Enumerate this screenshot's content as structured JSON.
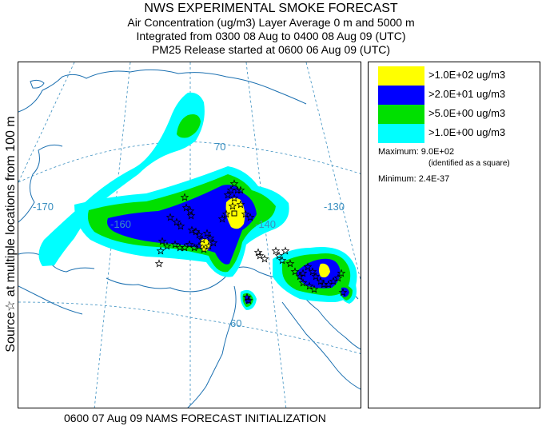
{
  "title": {
    "line1": "NWS EXPERIMENTAL SMOKE FORECAST",
    "line2": "Air Concentration (ug/m3) Layer Average    0 m and  5000 m",
    "line3": "Integrated from 0300 08 Aug to 0400 08 Aug 09 (UTC)",
    "line4": "PM25 Release started at 0600 06 Aug 09 (UTC)"
  },
  "side_label": "Source☆ at multiple locations    from   100 m",
  "legend": {
    "items": [
      {
        "label": ">1.0E+02 ug/m3",
        "color": "#ffff00"
      },
      {
        "label": ">2.0E+01 ug/m3",
        "color": "#0000ff"
      },
      {
        "label": ">5.0E+00 ug/m3",
        "color": "#00e000"
      },
      {
        "label": ">1.0E+00 ug/m3",
        "color": "#00ffff"
      }
    ],
    "maximum": "Maximum: 9.0E+02",
    "maximum_note": "(identified as a square)",
    "minimum": "Minimum: 2.4E-37"
  },
  "map": {
    "grid_labels": {
      "lon_170": "-170",
      "lon_160": "-160",
      "lon_140": "-140",
      "lon_130": "-130",
      "lat_70": "70",
      "lat_60": "60"
    },
    "colors": {
      "grid": "#3a8fc0",
      "coast": "#1a6fb0",
      "source_marker": "#000000"
    }
  },
  "footer": "0600 07 Aug 09 NAMS FORECAST INITIALIZATION"
}
